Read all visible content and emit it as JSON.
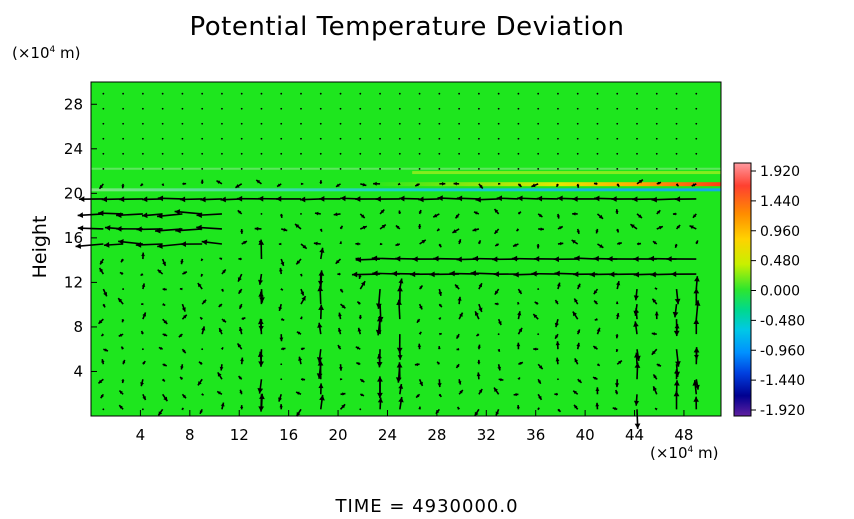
{
  "title": "Potential Temperature Deviation",
  "y_unit": "(×10",
  "y_unit_exp": "4",
  "y_unit_tail": " m)",
  "x_unit": "(×10",
  "x_unit_exp": "4",
  "x_unit_tail": " m)",
  "time_label": "TIME  =  4930000.0",
  "colors": {
    "background_field": "#1ee61e",
    "band_yellow": "#e6e600",
    "band_red": "#ff3c14",
    "band_cyan": "#14c8e6",
    "arrow": "#000000"
  },
  "chart_data": {
    "type": "heatmap",
    "title": "Potential Temperature Deviation",
    "xlabel": "",
    "ylabel": "Height",
    "x_unit": "(×10^4 m)",
    "y_unit": "(×10^4 m)",
    "xlim": [
      0,
      51
    ],
    "ylim": [
      0,
      30
    ],
    "x_ticks": [
      4,
      8,
      12,
      16,
      20,
      24,
      28,
      32,
      36,
      40,
      44,
      48
    ],
    "y_ticks": [
      4,
      8,
      12,
      16,
      20,
      24,
      28
    ],
    "colorbar": {
      "ticks": [
        1.92,
        1.44,
        0.96,
        0.48,
        0.0,
        -0.48,
        -0.96,
        -1.44,
        -1.92
      ],
      "labels": [
        "1.920",
        "1.440",
        "0.960",
        "0.480",
        "0.000",
        "-0.480",
        "-0.960",
        "-1.440",
        "-1.920"
      ],
      "range": [
        -1.92,
        1.92
      ],
      "colors_top_to_bottom": [
        "#ff9aa0",
        "#ff4030",
        "#ff8c00",
        "#ffd200",
        "#d4f000",
        "#2ee62e",
        "#00d98c",
        "#00c8e6",
        "#0090ff",
        "#0040e0",
        "#000090",
        "#6020a0"
      ]
    },
    "field_features": [
      {
        "description": "positive deviation band",
        "y": 20.6,
        "x_range": [
          30,
          51
        ],
        "max_value": 1.9
      },
      {
        "description": "negative deviation band",
        "y": 20.1,
        "x_range": [
          0,
          51
        ],
        "min_value": -0.6
      },
      {
        "description": "weak positive band",
        "y": 21.5,
        "x_range": [
          25,
          51
        ],
        "max_value": 0.7
      }
    ],
    "vector_field": {
      "description": "wind vectors",
      "strong_flow_levels": [
        {
          "y": 19.2,
          "direction": "westward",
          "x_range": [
            0,
            51
          ]
        },
        {
          "y": 16.2,
          "direction": "westward",
          "x_range": [
            0,
            12
          ]
        },
        {
          "y": 13.0,
          "direction": "westward",
          "x_range": [
            23,
            51
          ]
        },
        {
          "y": 14.2,
          "direction": "westward",
          "x_range": [
            30,
            51
          ]
        }
      ],
      "vertical_columns": [
        {
          "x": 14,
          "direction": "vertical"
        },
        {
          "x": 19,
          "direction": "vertical"
        },
        {
          "x": 24,
          "direction": "vertical"
        },
        {
          "x": 44,
          "direction": "vertical"
        },
        {
          "x": 48,
          "direction": "vertical"
        }
      ]
    }
  }
}
